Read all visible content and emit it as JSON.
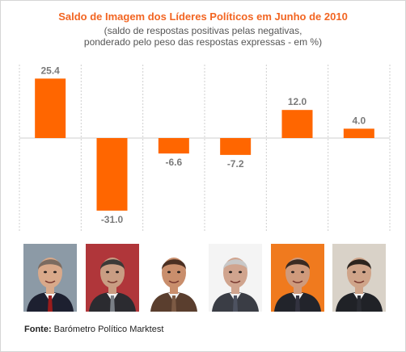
{
  "chart_data": {
    "type": "bar",
    "title": "Saldo de Imagem dos Líderes Políticos em Junho de 2010",
    "subtitle_line1": "(saldo de respostas positivas pelas negativas,",
    "subtitle_line2": "ponderado pelo peso das respostas expressas - em %)",
    "values": [
      25.4,
      -31.0,
      -6.6,
      -7.2,
      12.0,
      4.0
    ],
    "value_labels": [
      "25.4",
      "-31.0",
      "-6.6",
      "-7.2",
      "12.0",
      "4.0"
    ],
    "ylim": [
      -31.0,
      25.4
    ],
    "grid": "vertical dashed separators",
    "bar_color": "#ff6600",
    "label_color": "#7a7a7a"
  },
  "portraits": [
    {
      "icon": "portrait-photo-1",
      "bg": "#8c9aa6",
      "suit": "#1d2030",
      "tie": "#9a1c1c",
      "skin": "#d9a98a",
      "hair": "#7b6b60"
    },
    {
      "icon": "portrait-photo-2",
      "bg": "#b0363a",
      "suit": "#2b2b30",
      "tie": "#7a7f86",
      "skin": "#c99d83",
      "hair": "#3c3a38"
    },
    {
      "icon": "portrait-photo-3",
      "bg": "#ffffff",
      "suit": "#5a3e2e",
      "tie": "#7c5a44",
      "skin": "#c98e6c",
      "hair": "#4a2f22"
    },
    {
      "icon": "portrait-photo-4",
      "bg": "#f4f4f4",
      "suit": "#3a3d45",
      "tie": "#4d5260",
      "skin": "#d0a48e",
      "hair": "#c8c8c8"
    },
    {
      "icon": "portrait-photo-5",
      "bg": "#f07a1e",
      "suit": "#22242b",
      "tie": "#333340",
      "skin": "#cf9a7c",
      "hair": "#3a2a22"
    },
    {
      "icon": "portrait-photo-6",
      "bg": "#d9d2c8",
      "suit": "#202227",
      "tie": "#2a2c33",
      "skin": "#cfa489",
      "hair": "#2c241e"
    }
  ],
  "source": {
    "label": "Fonte:",
    "text": " Barómetro Político Marktest"
  }
}
